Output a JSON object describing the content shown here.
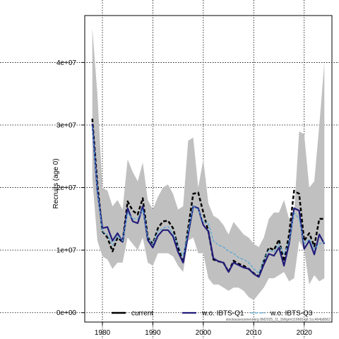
{
  "chart_data": {
    "type": "line",
    "title": "",
    "xlabel": "",
    "ylabel": "Recruits (age 0)",
    "xlim": [
      1976.5,
      2025.5
    ],
    "ylim": [
      -1500000,
      47500000
    ],
    "x_ticks": [
      1980,
      1990,
      2000,
      2010,
      2020
    ],
    "x_tick_labels": [
      "1980",
      "1990",
      "2000",
      "2010",
      "2020"
    ],
    "y_ticks": [
      0,
      10000000,
      20000000,
      30000000,
      40000000
    ],
    "y_tick_labels": [
      "0e+00",
      "1e+07",
      "2e+07",
      "3e+07",
      "4e+07"
    ],
    "grid": true,
    "legend_position": "bottom",
    "x": [
      1978,
      1979,
      1980,
      1981,
      1982,
      1983,
      1984,
      1985,
      1986,
      1987,
      1988,
      1989,
      1990,
      1991,
      1992,
      1993,
      1994,
      1995,
      1996,
      1997,
      1998,
      1999,
      2000,
      2001,
      2002,
      2003,
      2004,
      2005,
      2006,
      2007,
      2008,
      2009,
      2010,
      2011,
      2012,
      2013,
      2014,
      2015,
      2016,
      2017,
      2018,
      2019,
      2020,
      2021,
      2022,
      2023,
      2024
    ],
    "confidence_band": {
      "name": "current",
      "upper": [
        45500000,
        35000000,
        20000000,
        19500000,
        17000000,
        18000000,
        16500000,
        24500000,
        22500000,
        21000000,
        24000000,
        18000000,
        16500000,
        18500000,
        20000000,
        20500000,
        19000000,
        16500000,
        17000000,
        27500000,
        28000000,
        20000000,
        24500000,
        17500000,
        15500000,
        15000000,
        14000000,
        12500000,
        14500000,
        13500000,
        12500000,
        12000000,
        11000000,
        10500000,
        12000000,
        15000000,
        16000000,
        16000000,
        18000000,
        15000000,
        16000000,
        29000000,
        28500000,
        20000000,
        21000000,
        30000000,
        40000000
      ],
      "lower": [
        21500000,
        11500000,
        9000000,
        8500000,
        7000000,
        8000000,
        8000000,
        12000000,
        11000000,
        10000000,
        12000000,
        8000000,
        7500000,
        9500000,
        9500000,
        9500000,
        9000000,
        7500000,
        6500000,
        11500000,
        12000000,
        9500000,
        9500000,
        5500000,
        4500000,
        4500000,
        4000000,
        3500000,
        4000000,
        4000000,
        3500000,
        2500000,
        2000000,
        3000000,
        4000000,
        5500000,
        5500000,
        6000000,
        6500000,
        5000000,
        5500000,
        11500000,
        10000000,
        4500000,
        6000000,
        5000000,
        5500000
      ]
    },
    "series": [
      {
        "name": "current",
        "color": "#000000",
        "style": "dashed",
        "values": [
          31000000,
          20500000,
          13000000,
          12000000,
          9800000,
          12000000,
          11300000,
          17800000,
          16300000,
          15700000,
          18300000,
          12000000,
          11000000,
          13500000,
          14600000,
          14700000,
          13500000,
          10500000,
          8000000,
          13500000,
          19000000,
          19200000,
          16000000,
          13000000,
          8500000,
          8200000,
          8000000,
          6500000,
          8300000,
          7800000,
          7500000,
          7000000,
          6300000,
          5800000,
          8300000,
          10400000,
          10000000,
          11700000,
          8200000,
          12500000,
          19500000,
          19000000,
          11500000,
          12700000,
          10600000,
          15000000,
          15000000
        ]
      },
      {
        "name": "w.o. IBTS-Q1",
        "color": "#221c7a",
        "style": "solid",
        "values": [
          30200000,
          19500000,
          13500000,
          13700000,
          11500000,
          12700000,
          11300000,
          16700000,
          14600000,
          14300000,
          17000000,
          11600000,
          10400000,
          12300000,
          13200000,
          13200000,
          12200000,
          9700000,
          8000000,
          12500000,
          17000000,
          16700000,
          14000000,
          13000000,
          8700000,
          8200000,
          8000000,
          6500000,
          8000000,
          7600000,
          7200000,
          7000000,
          6200000,
          5700000,
          7700000,
          9400000,
          9100000,
          10400000,
          7500000,
          11000000,
          16700000,
          16300000,
          10200000,
          11500000,
          9300000,
          12500000,
          11000000
        ]
      },
      {
        "name": "w.o. IBTS-Q3",
        "color": "#4fa8d8",
        "style": "dashed",
        "values": [
          29800000,
          19500000,
          13000000,
          12500000,
          10800000,
          12300000,
          11500000,
          16000000,
          15000000,
          15000000,
          16500000,
          12000000,
          11000000,
          13000000,
          13500000,
          13800000,
          12700000,
          10800000,
          9000000,
          13000000,
          17000000,
          16500000,
          14500000,
          14300000,
          11500000,
          10800000,
          10500000,
          9800000,
          9500000,
          8800000,
          8500000,
          8000000,
          7000000,
          6300000,
          8500000,
          10000000,
          9700000,
          11000000,
          9300000,
          11300000,
          16000000,
          15000000,
          11000000,
          11800000,
          10200000,
          11000000,
          11300000
        ]
      }
    ],
    "band_color": "#c0c0c0",
    "footnote": "stockassessment.org 8M2025_11_SWgrnt119681 git:1cc464b8062"
  }
}
